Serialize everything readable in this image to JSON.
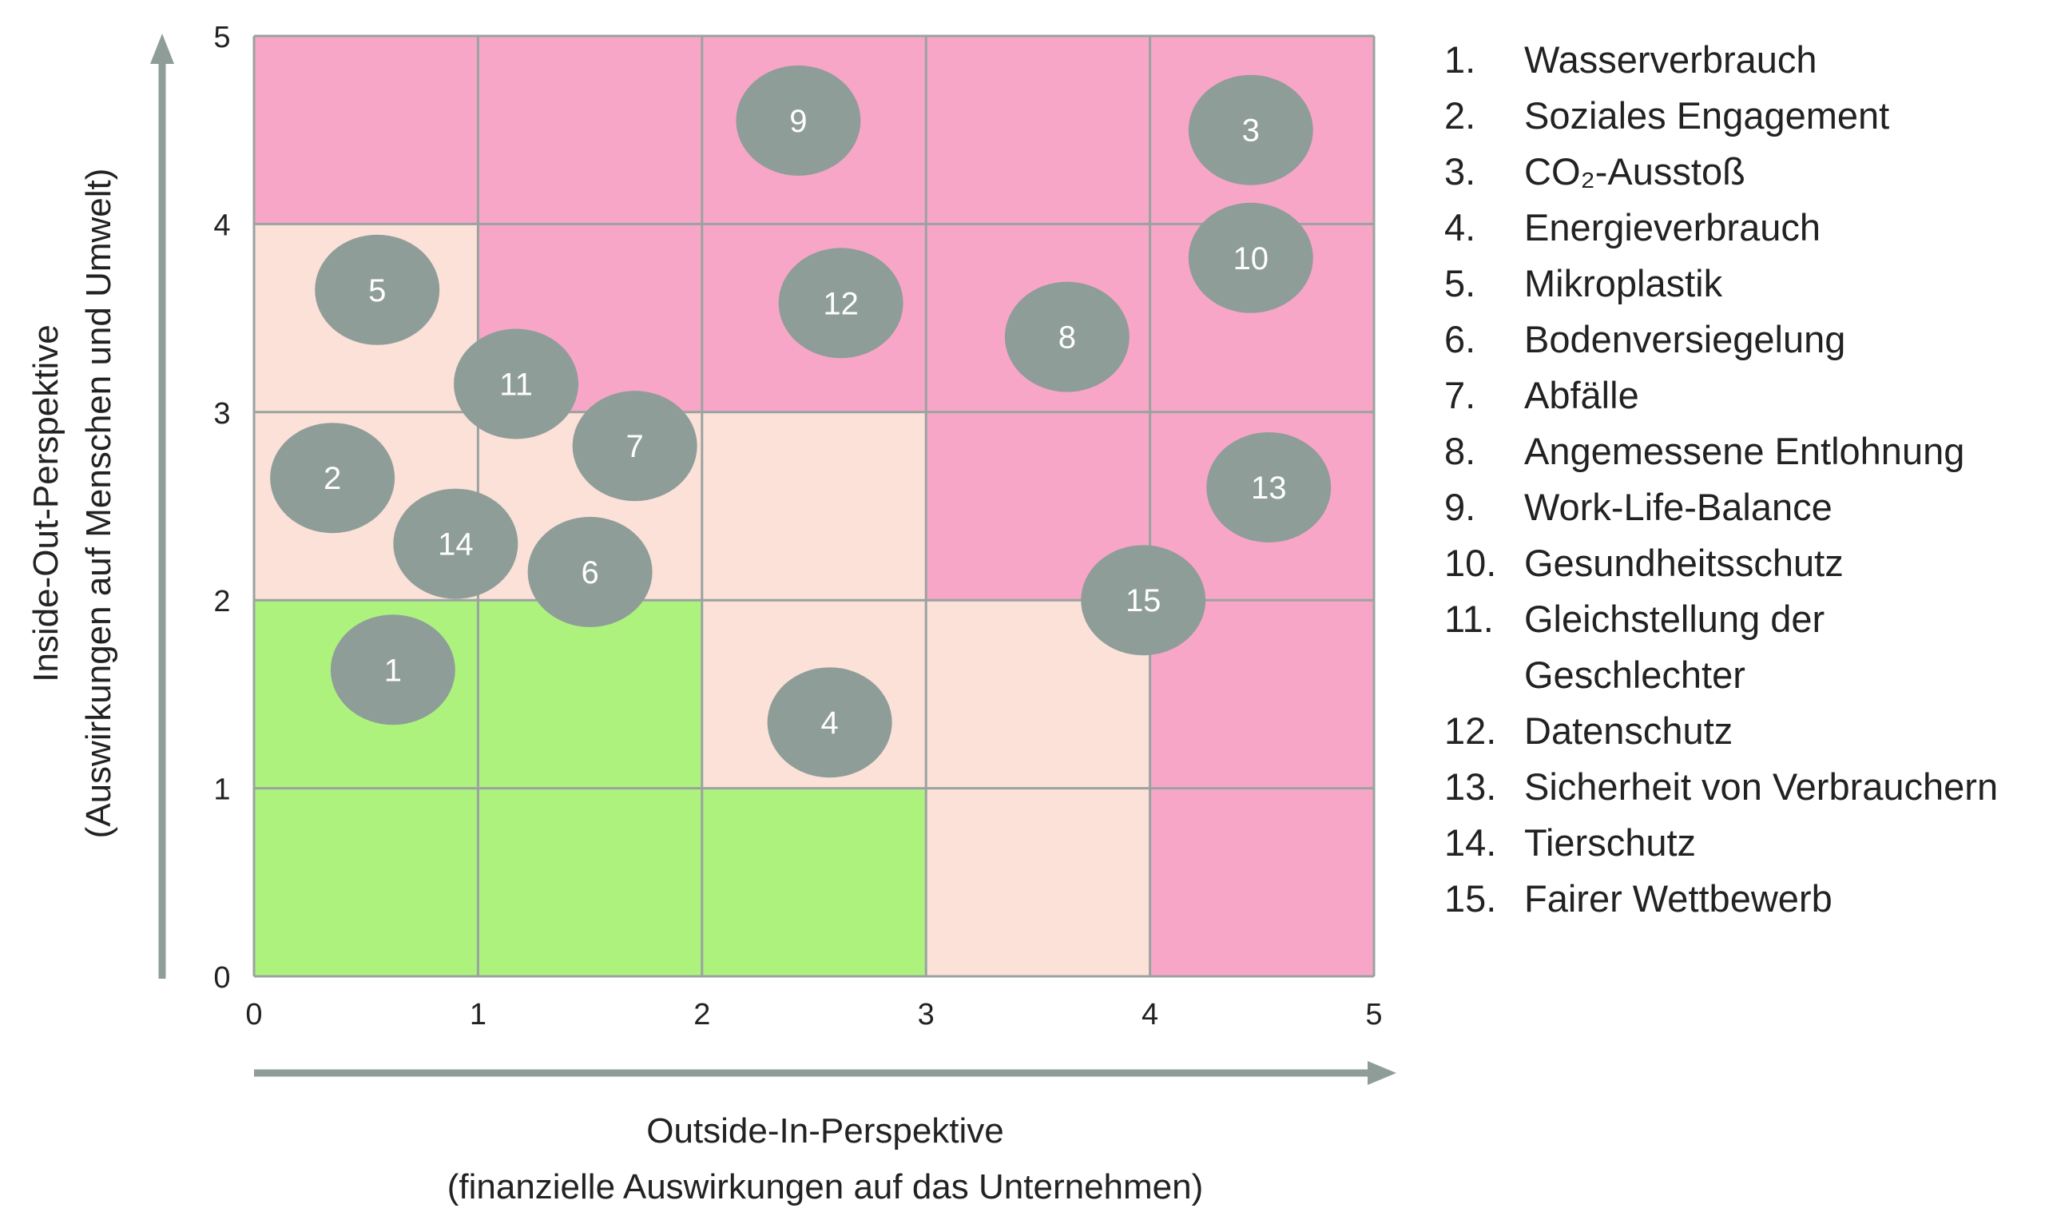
{
  "chart_data": {
    "type": "scatter",
    "title": "",
    "xlabel": "Outside-In-Perspektive",
    "xlabel_line2": "(finanzielle Auswirkungen auf das Unternehmen)",
    "ylabel": "Inside-Out-Perspektive",
    "ylabel_line2": "(Auswirkungen auf Menschen und Umwelt)",
    "xlim": [
      0,
      5
    ],
    "ylim": [
      0,
      5
    ],
    "x_ticks": [
      "0",
      "1",
      "2",
      "3",
      "4",
      "5"
    ],
    "y_ticks": [
      "0",
      "1",
      "2",
      "3",
      "4",
      "5"
    ],
    "grid": true,
    "colors": {
      "green": "#aef27e",
      "beige": "#fbe1d8",
      "pink": "#f8a6c7",
      "bubble": "#8f9d99",
      "grid": "#9aa3a0",
      "axis": "#8f9d99"
    },
    "cell_zones": [
      [
        "green",
        "green",
        "green",
        "beige",
        "pink"
      ],
      [
        "green",
        "green",
        "beige",
        "beige",
        "pink"
      ],
      [
        "beige",
        "beige",
        "beige",
        "pink",
        "pink"
      ],
      [
        "beige",
        "pink",
        "pink",
        "pink",
        "pink"
      ],
      [
        "pink",
        "pink",
        "pink",
        "pink",
        "pink"
      ]
    ],
    "points": [
      {
        "label": "1",
        "x": 0.62,
        "y": 1.63
      },
      {
        "label": "2",
        "x": 0.35,
        "y": 2.65
      },
      {
        "label": "3",
        "x": 4.45,
        "y": 4.5
      },
      {
        "label": "4",
        "x": 2.57,
        "y": 1.35
      },
      {
        "label": "5",
        "x": 0.55,
        "y": 3.65
      },
      {
        "label": "6",
        "x": 1.5,
        "y": 2.15
      },
      {
        "label": "7",
        "x": 1.7,
        "y": 2.82
      },
      {
        "label": "8",
        "x": 3.63,
        "y": 3.4
      },
      {
        "label": "9",
        "x": 2.43,
        "y": 4.55
      },
      {
        "label": "10",
        "x": 4.45,
        "y": 3.82
      },
      {
        "label": "11",
        "x": 1.17,
        "y": 3.15
      },
      {
        "label": "12",
        "x": 2.62,
        "y": 3.58
      },
      {
        "label": "13",
        "x": 4.53,
        "y": 2.6
      },
      {
        "label": "14",
        "x": 0.9,
        "y": 2.3
      },
      {
        "label": "15",
        "x": 3.97,
        "y": 2.0
      }
    ]
  },
  "legend": [
    {
      "num": "1.",
      "text": "Wasserverbrauch"
    },
    {
      "num": "2.",
      "text": "Soziales Engagement"
    },
    {
      "num": "3.",
      "text": "CO₂-Ausstoß"
    },
    {
      "num": "4.",
      "text": "Energieverbrauch"
    },
    {
      "num": "5.",
      "text": "Mikroplastik"
    },
    {
      "num": "6.",
      "text": "Bodenversiegelung"
    },
    {
      "num": "7.",
      "text": "Abfälle"
    },
    {
      "num": "8.",
      "text": "Angemessene Entlohnung"
    },
    {
      "num": "9.",
      "text": "Work-Life-Balance"
    },
    {
      "num": "10.",
      "text": "Gesundheitsschutz"
    },
    {
      "num": "11.",
      "text": "Gleichstellung der Geschlechter"
    },
    {
      "num": "12.",
      "text": "Datenschutz"
    },
    {
      "num": "13.",
      "text": "Sicherheit von Verbrauchern"
    },
    {
      "num": "14.",
      "text": "Tierschutz"
    },
    {
      "num": "15.",
      "text": "Fairer Wettbewerb"
    }
  ]
}
